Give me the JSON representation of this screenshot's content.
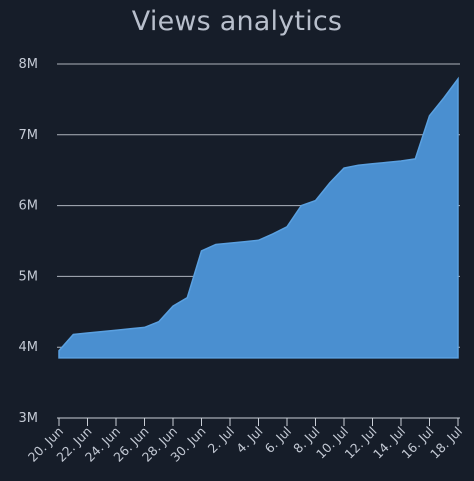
{
  "chart_data": {
    "type": "area",
    "title": "Views analytics",
    "xlabel": "",
    "ylabel": "",
    "x_ticks": [
      "20. Jun",
      "22. Jun",
      "24. Jun",
      "26. Jun",
      "28. Jun",
      "30. Jun",
      "2. Jul",
      "4. Jul",
      "6. Jul",
      "8. Jul",
      "10. Jul",
      "12. Jul",
      "14. Jul",
      "16. Jul",
      "18. Jul"
    ],
    "y_ticks": [
      "3M",
      "4M",
      "5M",
      "6M",
      "7M",
      "8M"
    ],
    "ylim": [
      3000000,
      8000000
    ],
    "x": [
      "20. Jun",
      "21. Jun",
      "22. Jun",
      "23. Jun",
      "24. Jun",
      "25. Jun",
      "26. Jun",
      "27. Jun",
      "28. Jun",
      "29. Jun",
      "30. Jun",
      "1. Jul",
      "2. Jul",
      "3. Jul",
      "4. Jul",
      "5. Jul",
      "6. Jul",
      "7. Jul",
      "8. Jul",
      "9. Jul",
      "10. Jul",
      "11. Jul",
      "12. Jul",
      "13. Jul",
      "14. Jul",
      "15. Jul",
      "16. Jul",
      "17. Jul",
      "18. Jul"
    ],
    "series": [
      {
        "values": [
          3950000,
          4180000,
          4200000,
          4220000,
          4240000,
          4260000,
          4280000,
          4360000,
          4580000,
          4700000,
          5360000,
          5450000,
          5470000,
          5490000,
          5510000,
          5600000,
          5700000,
          6000000,
          6070000,
          6320000,
          6530000,
          6570000,
          6590000,
          6610000,
          6630000,
          6660000,
          7270000,
          7520000,
          7790000
        ],
        "baseline": 3850000,
        "color": "#4a8fd0"
      }
    ],
    "grid": true
  }
}
